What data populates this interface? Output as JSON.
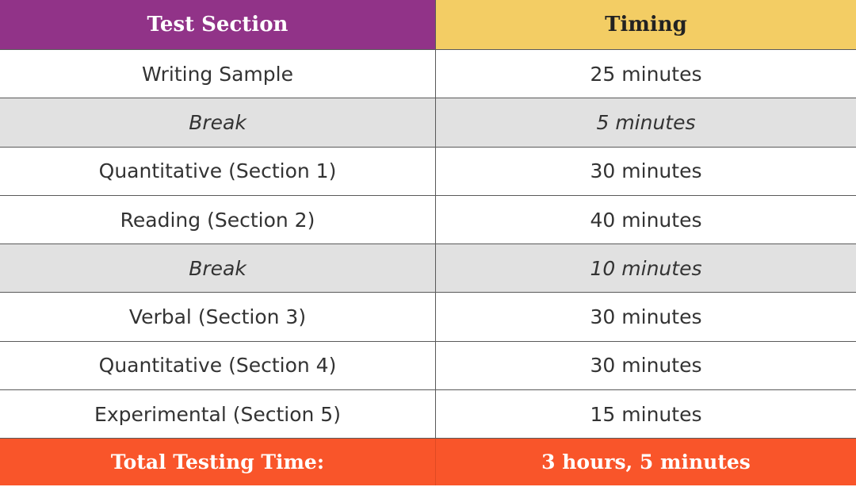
{
  "header": {
    "section_label": "Test Section",
    "timing_label": "Timing"
  },
  "rows": [
    {
      "section": "Writing Sample",
      "timing": "25 minutes",
      "is_break": false
    },
    {
      "section": "Break",
      "timing": "5 minutes",
      "is_break": true
    },
    {
      "section": "Quantitative (Section 1)",
      "timing": "30 minutes",
      "is_break": false
    },
    {
      "section": "Reading (Section 2)",
      "timing": "40 minutes",
      "is_break": false
    },
    {
      "section": "Break",
      "timing": "10 minutes",
      "is_break": true
    },
    {
      "section": "Verbal (Section 3)",
      "timing": "30 minutes",
      "is_break": false
    },
    {
      "section": "Quantitative (Section 4)",
      "timing": "30 minutes",
      "is_break": false
    },
    {
      "section": "Experimental (Section 5)",
      "timing": "15 minutes",
      "is_break": false
    }
  ],
  "footer": {
    "total_label": "Total Testing Time:",
    "total_value": "3 hours, 5 minutes"
  },
  "colors": {
    "header_section_bg": "#913388",
    "header_timing_bg": "#f3cd64",
    "break_row_bg": "#e1e1e1",
    "footer_bg": "#f9552a"
  }
}
